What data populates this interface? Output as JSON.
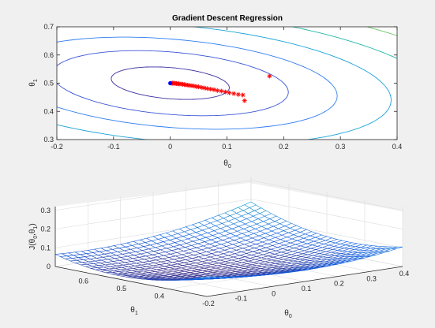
{
  "chart_data": [
    {
      "type": "contour",
      "title": "Gradient Descent Regression",
      "xlabel": {
        "base": "θ",
        "sub": "0"
      },
      "ylabel": {
        "base": "θ",
        "sub": "1"
      },
      "xlim": [
        -0.2,
        0.4
      ],
      "ylim": [
        0.3,
        0.7
      ],
      "xticks": [
        "-0.2",
        "-0.1",
        "0",
        "0.1",
        "0.2",
        "0.3",
        "0.4"
      ],
      "yticks": [
        "0.3",
        "0.4",
        "0.5",
        "0.6",
        "0.7"
      ],
      "grid": false,
      "contour_levels": [
        0.005,
        0.02,
        0.04,
        0.07,
        0.11,
        0.16,
        0.22
      ],
      "contour_colors": [
        "#3a2fa0",
        "#3b55d6",
        "#2f7ef2",
        "#1aa3d8",
        "#24b8a9",
        "#6cc56a",
        "#d8b936"
      ],
      "path_points": [
        [
          0.175,
          0.525
        ],
        [
          0.131,
          0.438
        ],
        [
          0.128,
          0.458
        ],
        [
          0.12,
          0.46
        ],
        [
          0.112,
          0.463
        ],
        [
          0.104,
          0.466
        ],
        [
          0.097,
          0.469
        ],
        [
          0.09,
          0.472
        ],
        [
          0.083,
          0.474
        ],
        [
          0.077,
          0.477
        ],
        [
          0.071,
          0.479
        ],
        [
          0.065,
          0.481
        ],
        [
          0.06,
          0.483
        ],
        [
          0.055,
          0.485
        ],
        [
          0.05,
          0.487
        ],
        [
          0.046,
          0.488
        ],
        [
          0.042,
          0.49
        ],
        [
          0.038,
          0.491
        ],
        [
          0.034,
          0.492
        ],
        [
          0.031,
          0.493
        ],
        [
          0.028,
          0.494
        ],
        [
          0.025,
          0.495
        ],
        [
          0.022,
          0.496
        ],
        [
          0.02,
          0.497
        ],
        [
          0.017,
          0.497
        ],
        [
          0.015,
          0.498
        ],
        [
          0.013,
          0.498
        ],
        [
          0.011,
          0.499
        ],
        [
          0.009,
          0.499
        ],
        [
          0.007,
          0.5
        ],
        [
          0.005,
          0.5
        ],
        [
          0.004,
          0.5
        ],
        [
          0.002,
          0.5
        ]
      ],
      "path_color": "#ff0000",
      "minimum_point": [
        0.0,
        0.5
      ],
      "minimum_color": "#0000ff"
    },
    {
      "type": "surface",
      "xlabel": {
        "base": "θ",
        "sub": "0"
      },
      "ylabel": {
        "base": "θ",
        "sub": "1"
      },
      "zlabel": {
        "base": "J(θ",
        "sub0": "0",
        "mid": ",θ",
        "sub1": "1",
        "end": ")"
      },
      "xlim": [
        -0.2,
        0.4
      ],
      "ylim": [
        0.3,
        0.7
      ],
      "zlim": [
        0,
        0.32
      ],
      "xticks": [
        "-0.2",
        "-0.1",
        "0",
        "0.1",
        "0.2",
        "0.3",
        "0.4"
      ],
      "yticks": [
        "0.6",
        "0.5",
        "0.4"
      ],
      "zticks": [
        "0",
        "0.1",
        "0.2",
        "0.3"
      ],
      "grid": true,
      "colormap": "parula"
    }
  ]
}
